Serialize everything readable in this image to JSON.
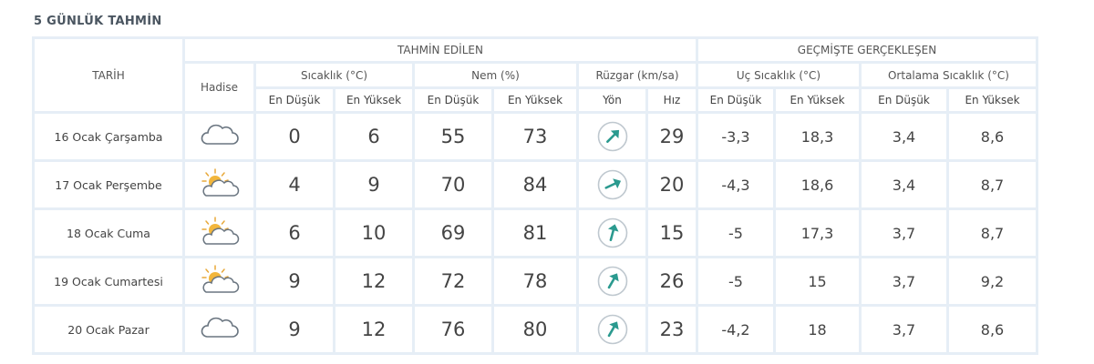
{
  "page_title": "5 GÜNLÜK TAHMİN",
  "header": {
    "forecast_group": "TAHMİN EDİLEN",
    "past_group": "GEÇMİŞTE GERÇEKLEŞEN",
    "date_col": "TARİH",
    "hadise_col": "Hadise",
    "temp_group": "Sıcaklık (°C)",
    "humidity_group": "Nem (%)",
    "wind_group": "Rüzgar (km/sa)",
    "extreme_group": "Uç Sıcaklık (°C)",
    "avg_group": "Ortalama Sıcaklık (°C)",
    "low": "En Düşük",
    "high": "En Yüksek",
    "direction": "Yön",
    "speed": "Hız"
  },
  "colors": {
    "low": "#3a87b6",
    "high": "#d23b5a",
    "humidity_low": "#e29a35",
    "wind": "#35a9a0"
  },
  "rows": [
    {
      "date": "16 Ocak Çarşamba",
      "icon": "cloud-icon",
      "temp_low": "0",
      "temp_high": "6",
      "hum_low": "55",
      "hum_high": "73",
      "wind_dir_deg": 45,
      "wind_speed": "29",
      "ext_low": "-3,3",
      "ext_high": "18,3",
      "avg_low": "3,4",
      "avg_high": "8,6"
    },
    {
      "date": "17 Ocak Perşembe",
      "icon": "partly-sunny-icon",
      "temp_low": "4",
      "temp_high": "9",
      "hum_low": "70",
      "hum_high": "84",
      "wind_dir_deg": 65,
      "wind_speed": "20",
      "ext_low": "-4,3",
      "ext_high": "18,6",
      "avg_low": "3,4",
      "avg_high": "8,7"
    },
    {
      "date": "18 Ocak Cuma",
      "icon": "partly-sunny-icon",
      "temp_low": "6",
      "temp_high": "10",
      "hum_low": "69",
      "hum_high": "81",
      "wind_dir_deg": 15,
      "wind_speed": "15",
      "ext_low": "-5",
      "ext_high": "17,3",
      "avg_low": "3,7",
      "avg_high": "8,7"
    },
    {
      "date": "19 Ocak Cumartesi",
      "icon": "partly-sunny-icon",
      "temp_low": "9",
      "temp_high": "12",
      "hum_low": "72",
      "hum_high": "78",
      "wind_dir_deg": 30,
      "wind_speed": "26",
      "ext_low": "-5",
      "ext_high": "15",
      "avg_low": "3,7",
      "avg_high": "9,2"
    },
    {
      "date": "20 Ocak Pazar",
      "icon": "cloud-icon",
      "temp_low": "9",
      "temp_high": "12",
      "hum_low": "76",
      "hum_high": "80",
      "wind_dir_deg": 30,
      "wind_speed": "23",
      "ext_low": "-4,2",
      "ext_high": "18",
      "avg_low": "3,7",
      "avg_high": "8,6"
    }
  ]
}
